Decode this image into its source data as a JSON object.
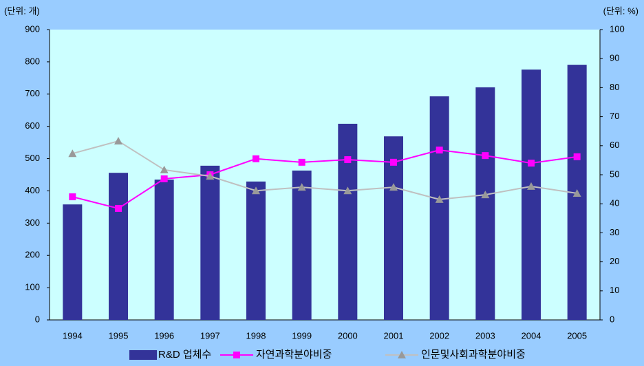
{
  "chart_data": {
    "type": "bar",
    "y_unit_label": "(단위: 개)",
    "y2_unit_label": "(단위: %)",
    "categories": [
      "1994",
      "1995",
      "1996",
      "1997",
      "1998",
      "1999",
      "2000",
      "2001",
      "2002",
      "2003",
      "2004",
      "2005"
    ],
    "series": [
      {
        "name": "R&D 업체수",
        "type": "bar",
        "color": "#333399",
        "values": [
          358,
          456,
          435,
          478,
          429,
          463,
          608,
          569,
          693,
          721,
          776,
          791
        ]
      },
      {
        "name": "자연과학분야비중",
        "type": "line",
        "axis": "y2",
        "marker": "square",
        "color": "#ff00ff",
        "values": [
          42.4,
          38.4,
          48.6,
          50,
          55.5,
          54.3,
          55.2,
          54.3,
          58.5,
          56.6,
          54,
          56.2
        ]
      },
      {
        "name": "인문및사회과학분야비중",
        "type": "line",
        "axis": "y2",
        "marker": "triangle",
        "color": "#c0c0c0",
        "values": [
          57.3,
          61.6,
          51.7,
          49.5,
          44.5,
          45.7,
          44.5,
          45.7,
          41.5,
          43.1,
          46,
          43.6
        ]
      }
    ],
    "ylim": [
      0,
      900
    ],
    "yticks": [
      0,
      100,
      200,
      300,
      400,
      500,
      600,
      700,
      800,
      900
    ],
    "y2lim": [
      0,
      100
    ],
    "y2ticks": [
      0,
      10,
      20,
      30,
      40,
      50,
      60,
      70,
      80,
      90,
      100
    ],
    "legend": "bottom"
  }
}
